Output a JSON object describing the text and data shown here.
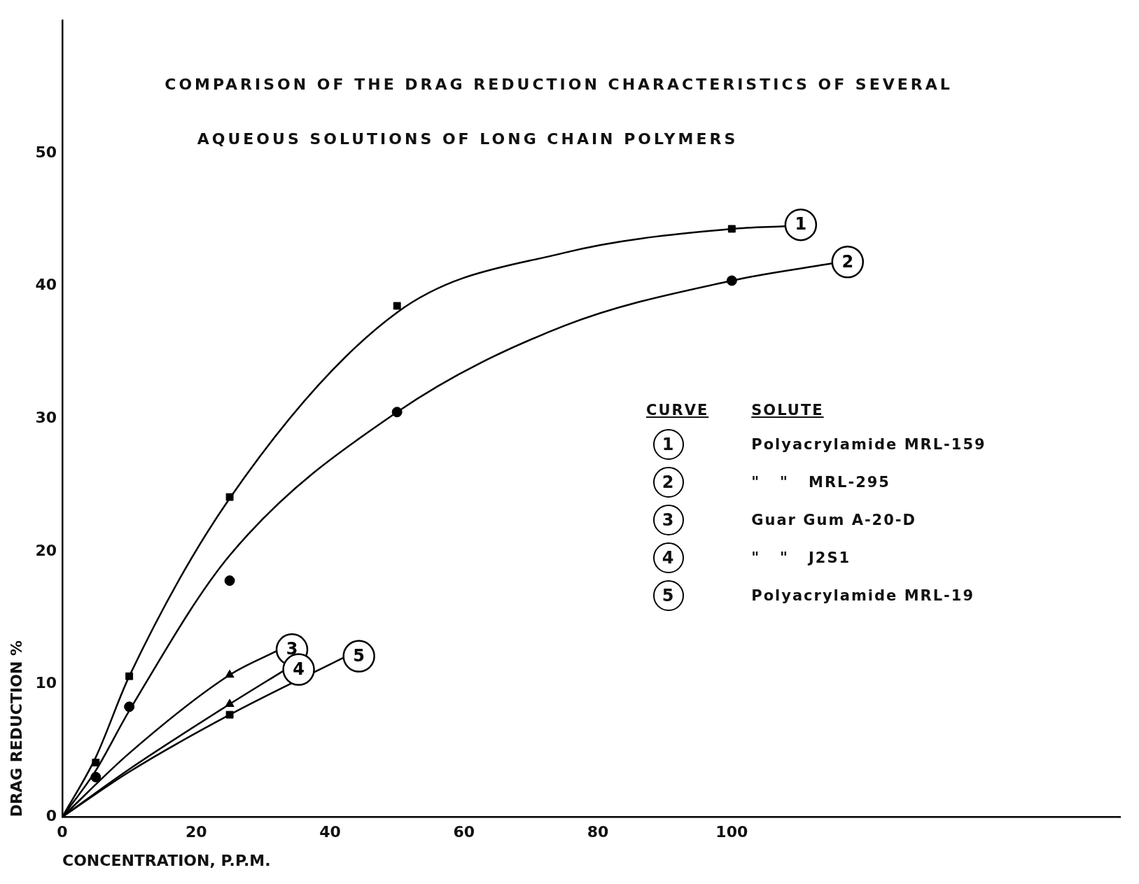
{
  "chart_data": {
    "type": "line",
    "title": "COMPARISON OF THE DRAG REDUCTION CHARACTERISTICS OF SEVERAL",
    "subtitle": "AQUEOUS SOLUTIONS OF LONG CHAIN POLYMERS",
    "xlabel": "CONCENTRATION, P.P.M.",
    "ylabel": "DRAG REDUCTION %",
    "xlim": [
      0,
      158
    ],
    "xticks": [
      0,
      20,
      40,
      60,
      80,
      100
    ],
    "ylim": [
      0,
      60
    ],
    "yticks": [
      0,
      10,
      20,
      30,
      40,
      50
    ],
    "grid": false,
    "legend": "center",
    "annotations": [
      "CURVE",
      "SOLUTE",
      "Polyacrylamide MRL-159",
      "\"   \"   MRL-295",
      "Guar Gum A-20-D",
      "\"   \"   J2S1",
      "Polyacrylamide MRL-19"
    ],
    "series": [
      {
        "type": "line",
        "name": "1",
        "color": "#000000",
        "marker": "none",
        "x": [
          0,
          5,
          10,
          25,
          50,
          75,
          100,
          108
        ],
        "values": [
          0,
          4.5,
          10.6,
          24,
          38,
          42.5,
          44.3,
          44.5
        ]
      },
      {
        "type": "line",
        "name": "2",
        "color": "#000000",
        "marker": "none",
        "x": [
          0,
          5,
          10,
          25,
          50,
          75,
          100,
          115
        ],
        "values": [
          0,
          3.5,
          8,
          19.7,
          30.5,
          37,
          40.4,
          41.7
        ]
      },
      {
        "type": "line",
        "name": "3",
        "color": "#000000",
        "marker": "none",
        "x": [
          0,
          10,
          25,
          32
        ],
        "values": [
          0,
          4.8,
          10.7,
          12.5
        ]
      },
      {
        "type": "line",
        "name": "4",
        "color": "#000000",
        "marker": "none",
        "x": [
          0,
          10,
          25,
          33
        ],
        "values": [
          0,
          3.6,
          8.5,
          11
        ]
      },
      {
        "type": "line",
        "name": "5",
        "color": "#000000",
        "marker": "none",
        "x": [
          0,
          10,
          25,
          42
        ],
        "values": [
          0,
          3.4,
          7.7,
          12
        ]
      },
      {
        "type": "scatter",
        "color": "#000000",
        "marker": "square",
        "x": [
          5,
          10,
          25,
          50,
          100
        ],
        "values": [
          4.1,
          10.6,
          24.1,
          38.5,
          44.3
        ]
      },
      {
        "type": "scatter",
        "color": "#000000",
        "marker": "circle",
        "x": [
          5,
          10,
          25,
          50,
          100
        ],
        "values": [
          3,
          8.3,
          17.8,
          30.5,
          40.4
        ]
      },
      {
        "type": "scatter",
        "color": "#000000",
        "marker": "triangle",
        "x": [
          25
        ],
        "values": [
          10.7
        ]
      },
      {
        "type": "scatter",
        "color": "#000000",
        "marker": "triangle",
        "x": [
          25
        ],
        "values": [
          8.5
        ]
      },
      {
        "type": "scatter",
        "color": "#000000",
        "marker": "square",
        "x": [
          25
        ],
        "values": [
          7.7
        ]
      }
    ]
  }
}
